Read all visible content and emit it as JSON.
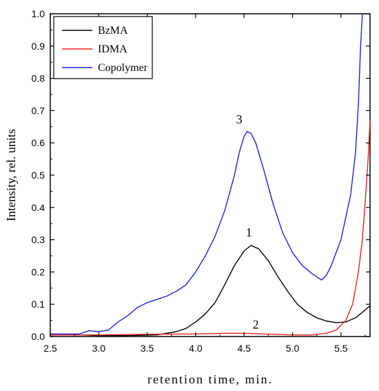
{
  "chart_data": {
    "type": "line",
    "xlabel": "retention time, min.",
    "ylabel": "Intensity, rel. units",
    "xlim": [
      2.5,
      5.8
    ],
    "ylim": [
      0.0,
      1.0
    ],
    "x_ticks": [
      "2.5",
      "3.0",
      "3.5",
      "4.0",
      "4.5",
      "5.0",
      "5.5"
    ],
    "y_ticks": [
      "0.0",
      "0.1",
      "0.2",
      "0.3",
      "0.4",
      "0.5",
      "0.6",
      "0.7",
      "0.8",
      "0.9",
      "1.0"
    ],
    "legend_position": "top-left",
    "grid": false,
    "series": [
      {
        "name": "BzMA",
        "color": "#000000",
        "points": [
          [
            2.5,
            0.005
          ],
          [
            2.8,
            0.005
          ],
          [
            3.0,
            0.003
          ],
          [
            3.3,
            0.003
          ],
          [
            3.6,
            0.005
          ],
          [
            3.8,
            0.015
          ],
          [
            3.9,
            0.025
          ],
          [
            4.0,
            0.045
          ],
          [
            4.1,
            0.07
          ],
          [
            4.2,
            0.105
          ],
          [
            4.3,
            0.16
          ],
          [
            4.4,
            0.22
          ],
          [
            4.5,
            0.265
          ],
          [
            4.57,
            0.282
          ],
          [
            4.65,
            0.272
          ],
          [
            4.75,
            0.235
          ],
          [
            4.85,
            0.185
          ],
          [
            4.95,
            0.14
          ],
          [
            5.05,
            0.1
          ],
          [
            5.15,
            0.075
          ],
          [
            5.25,
            0.058
          ],
          [
            5.35,
            0.048
          ],
          [
            5.45,
            0.043
          ],
          [
            5.55,
            0.045
          ],
          [
            5.65,
            0.058
          ],
          [
            5.72,
            0.075
          ],
          [
            5.8,
            0.095
          ]
        ]
      },
      {
        "name": "IDMA",
        "color": "#e8231f",
        "points": [
          [
            2.5,
            0.005
          ],
          [
            3.0,
            0.005
          ],
          [
            3.5,
            0.007
          ],
          [
            4.0,
            0.008
          ],
          [
            4.3,
            0.01
          ],
          [
            4.5,
            0.01
          ],
          [
            4.7,
            0.008
          ],
          [
            5.0,
            0.005
          ],
          [
            5.2,
            0.005
          ],
          [
            5.35,
            0.01
          ],
          [
            5.45,
            0.02
          ],
          [
            5.55,
            0.05
          ],
          [
            5.62,
            0.1
          ],
          [
            5.68,
            0.2
          ],
          [
            5.72,
            0.3
          ],
          [
            5.75,
            0.42
          ],
          [
            5.78,
            0.55
          ],
          [
            5.8,
            0.67
          ]
        ]
      },
      {
        "name": "Copolymer",
        "color": "#1f1fd6",
        "points": [
          [
            2.5,
            0.008
          ],
          [
            2.8,
            0.008
          ],
          [
            2.9,
            0.018
          ],
          [
            3.0,
            0.015
          ],
          [
            3.1,
            0.02
          ],
          [
            3.2,
            0.045
          ],
          [
            3.3,
            0.065
          ],
          [
            3.4,
            0.09
          ],
          [
            3.5,
            0.105
          ],
          [
            3.6,
            0.115
          ],
          [
            3.7,
            0.125
          ],
          [
            3.8,
            0.14
          ],
          [
            3.9,
            0.16
          ],
          [
            4.0,
            0.2
          ],
          [
            4.1,
            0.25
          ],
          [
            4.2,
            0.31
          ],
          [
            4.3,
            0.39
          ],
          [
            4.4,
            0.5
          ],
          [
            4.45,
            0.57
          ],
          [
            4.5,
            0.62
          ],
          [
            4.53,
            0.635
          ],
          [
            4.57,
            0.63
          ],
          [
            4.62,
            0.6
          ],
          [
            4.7,
            0.52
          ],
          [
            4.8,
            0.41
          ],
          [
            4.9,
            0.32
          ],
          [
            5.0,
            0.26
          ],
          [
            5.1,
            0.22
          ],
          [
            5.2,
            0.195
          ],
          [
            5.3,
            0.175
          ],
          [
            5.35,
            0.19
          ],
          [
            5.4,
            0.22
          ],
          [
            5.5,
            0.3
          ],
          [
            5.6,
            0.44
          ],
          [
            5.65,
            0.57
          ],
          [
            5.68,
            0.72
          ],
          [
            5.7,
            0.88
          ],
          [
            5.72,
            1.0
          ]
        ]
      }
    ],
    "annotations": [
      {
        "text": "3",
        "x": 4.45,
        "y": 0.66
      },
      {
        "text": "1",
        "x": 4.55,
        "y": 0.31
      },
      {
        "text": "2",
        "x": 4.62,
        "y": 0.025
      }
    ]
  }
}
